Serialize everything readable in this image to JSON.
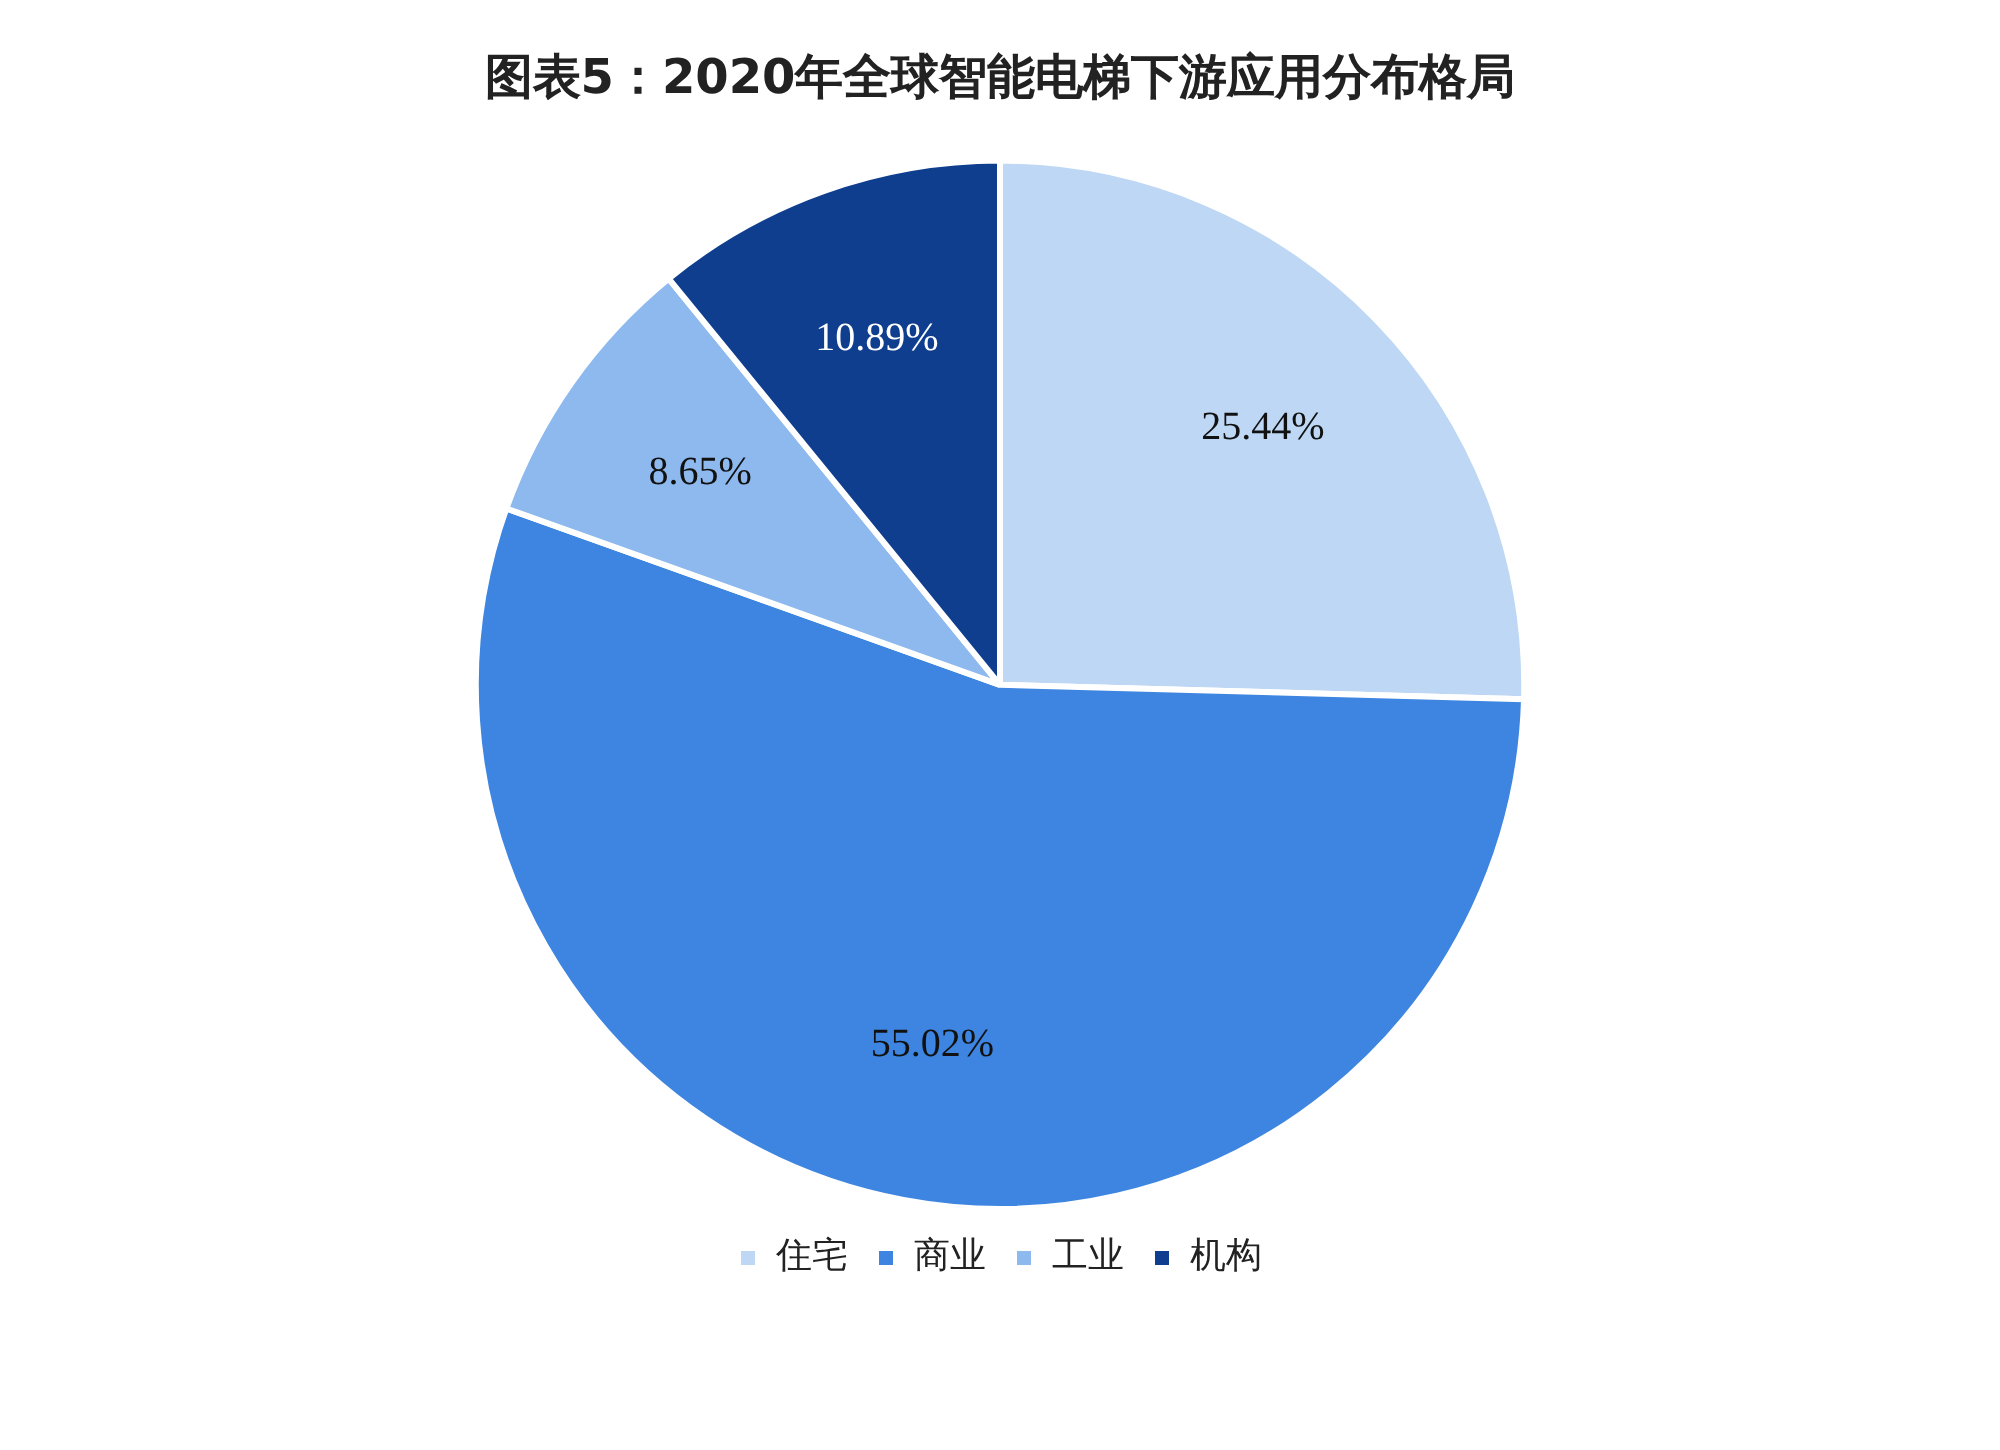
{
  "chart_data": {
    "type": "pie",
    "title": "图表5：2020年全球智能电梯下游应用分布格局",
    "categories": [
      "住宅",
      "商业",
      "工业",
      "机构"
    ],
    "values": [
      25.44,
      55.02,
      8.65,
      10.89
    ],
    "colors": [
      "#bdd7f5",
      "#3d85e0",
      "#8db9ee",
      "#0f3e8f"
    ],
    "value_labels": [
      "25.44%",
      "55.02%",
      "8.65%",
      "10.89%"
    ],
    "legend": "bottom"
  }
}
